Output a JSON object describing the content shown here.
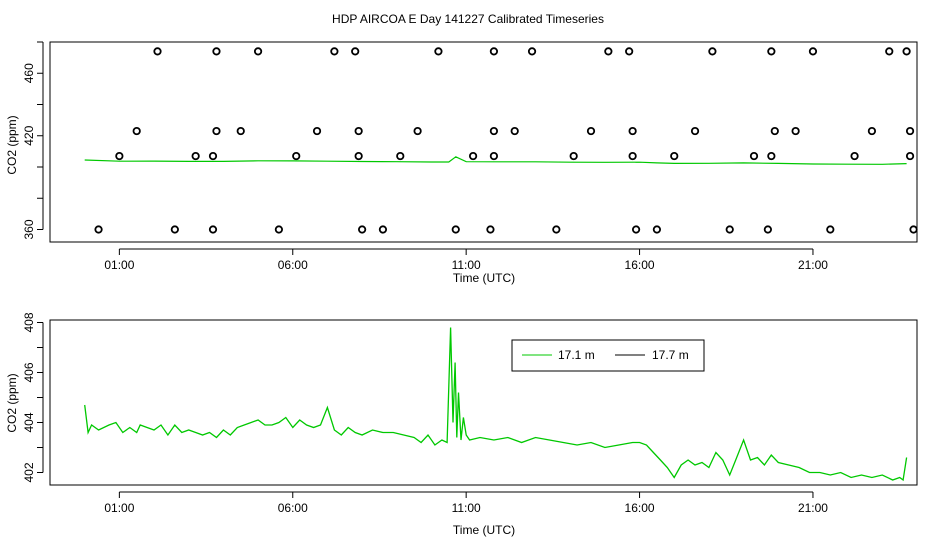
{
  "title": "HDP AIRCOA E  Day 141227  Calibrated Timeseries",
  "colors": {
    "series_17_1": "#00c800",
    "series_17_7": "#000000",
    "axis": "#000000"
  },
  "chart_data": [
    {
      "type": "scatter",
      "xlabel": "Time (UTC)",
      "ylabel": "CO2 (ppm)",
      "xlim": [
        -1.0,
        24.0
      ],
      "ylim": [
        352,
        480
      ],
      "x_ticks": [
        1,
        6,
        11,
        16,
        21
      ],
      "x_tick_labels": [
        "01:00",
        "06:00",
        "11:00",
        "16:00",
        "21:00"
      ],
      "y_ticks": [
        360,
        380,
        400,
        420,
        440,
        460,
        480
      ],
      "y_tick_labels": [
        "360",
        "",
        "",
        "420",
        "",
        "460",
        ""
      ],
      "grid": false,
      "calibration_points": [
        {
          "x": 2.1,
          "y": 474
        },
        {
          "x": 3.8,
          "y": 474
        },
        {
          "x": 5.0,
          "y": 474
        },
        {
          "x": 7.2,
          "y": 474
        },
        {
          "x": 7.8,
          "y": 474
        },
        {
          "x": 10.2,
          "y": 474
        },
        {
          "x": 11.8,
          "y": 474
        },
        {
          "x": 12.9,
          "y": 474
        },
        {
          "x": 15.1,
          "y": 474
        },
        {
          "x": 15.7,
          "y": 474
        },
        {
          "x": 18.1,
          "y": 474
        },
        {
          "x": 19.8,
          "y": 474
        },
        {
          "x": 21.0,
          "y": 474
        },
        {
          "x": 23.2,
          "y": 474
        },
        {
          "x": 23.7,
          "y": 474
        },
        {
          "x": 1.5,
          "y": 423
        },
        {
          "x": 3.8,
          "y": 423
        },
        {
          "x": 4.5,
          "y": 423
        },
        {
          "x": 6.7,
          "y": 423
        },
        {
          "x": 7.9,
          "y": 423
        },
        {
          "x": 9.6,
          "y": 423
        },
        {
          "x": 11.8,
          "y": 423
        },
        {
          "x": 12.4,
          "y": 423
        },
        {
          "x": 14.6,
          "y": 423
        },
        {
          "x": 15.8,
          "y": 423
        },
        {
          "x": 17.6,
          "y": 423
        },
        {
          "x": 19.9,
          "y": 423
        },
        {
          "x": 20.5,
          "y": 423
        },
        {
          "x": 22.7,
          "y": 423
        },
        {
          "x": 23.8,
          "y": 423
        },
        {
          "x": 1.0,
          "y": 407
        },
        {
          "x": 3.2,
          "y": 407
        },
        {
          "x": 3.7,
          "y": 407
        },
        {
          "x": 6.1,
          "y": 407
        },
        {
          "x": 7.9,
          "y": 407
        },
        {
          "x": 9.1,
          "y": 407
        },
        {
          "x": 11.2,
          "y": 407
        },
        {
          "x": 11.8,
          "y": 407
        },
        {
          "x": 14.1,
          "y": 407
        },
        {
          "x": 15.8,
          "y": 407
        },
        {
          "x": 17.0,
          "y": 407
        },
        {
          "x": 19.3,
          "y": 407
        },
        {
          "x": 19.8,
          "y": 407
        },
        {
          "x": 22.2,
          "y": 407
        },
        {
          "x": 23.8,
          "y": 407
        },
        {
          "x": 0.4,
          "y": 360
        },
        {
          "x": 2.6,
          "y": 360
        },
        {
          "x": 3.7,
          "y": 360
        },
        {
          "x": 5.6,
          "y": 360
        },
        {
          "x": 8.0,
          "y": 360
        },
        {
          "x": 8.6,
          "y": 360
        },
        {
          "x": 10.7,
          "y": 360
        },
        {
          "x": 11.7,
          "y": 360
        },
        {
          "x": 13.6,
          "y": 360
        },
        {
          "x": 15.9,
          "y": 360
        },
        {
          "x": 16.5,
          "y": 360
        },
        {
          "x": 18.6,
          "y": 360
        },
        {
          "x": 19.7,
          "y": 360
        },
        {
          "x": 21.5,
          "y": 360
        },
        {
          "x": 23.9,
          "y": 360
        }
      ],
      "line_series": [
        {
          "x": [
            0.0,
            1.0,
            2.0,
            3.0,
            4.0,
            5.0,
            6.0,
            7.0,
            8.0,
            9.0,
            10.0,
            10.5,
            10.7,
            11.0,
            12.0,
            13.0,
            14.0,
            15.0,
            16.0,
            16.5,
            17.0,
            18.0,
            19.0,
            20.0,
            21.0,
            22.0,
            23.0,
            23.7
          ],
          "y": [
            404.5,
            403.7,
            403.8,
            403.6,
            403.6,
            404.0,
            403.9,
            403.7,
            403.5,
            403.4,
            403.2,
            403.2,
            406.5,
            403.4,
            403.3,
            403.3,
            403.1,
            403.0,
            403.1,
            402.6,
            402.3,
            402.4,
            402.6,
            402.3,
            401.9,
            401.8,
            401.7,
            402.2
          ]
        }
      ]
    },
    {
      "type": "line",
      "xlabel": "Time (UTC)",
      "ylabel": "CO2 (ppm)",
      "xlim": [
        -1.0,
        24.0
      ],
      "ylim": [
        401.5,
        408.1
      ],
      "x_ticks": [
        1,
        6,
        11,
        16,
        21
      ],
      "x_tick_labels": [
        "01:00",
        "06:00",
        "11:00",
        "16:00",
        "21:00"
      ],
      "y_ticks": [
        402,
        403,
        404,
        405,
        406,
        407,
        408
      ],
      "y_tick_labels": [
        "402",
        "",
        "404",
        "",
        "406",
        "",
        "408"
      ],
      "grid": false,
      "legend_position": "top-right",
      "legend": [
        "17.1 m",
        "17.7 m"
      ],
      "series": [
        {
          "name": "17.1 m",
          "x": [
            0.0,
            0.1,
            0.2,
            0.4,
            0.7,
            0.9,
            1.1,
            1.3,
            1.5,
            1.6,
            1.8,
            2.0,
            2.2,
            2.4,
            2.6,
            2.8,
            3.0,
            3.2,
            3.4,
            3.6,
            3.8,
            4.0,
            4.2,
            4.4,
            4.6,
            4.8,
            5.0,
            5.2,
            5.4,
            5.6,
            5.8,
            6.0,
            6.2,
            6.4,
            6.6,
            6.8,
            7.0,
            7.2,
            7.4,
            7.6,
            7.8,
            8.0,
            8.3,
            8.6,
            8.9,
            9.2,
            9.5,
            9.7,
            9.9,
            10.1,
            10.3,
            10.45,
            10.55,
            10.62,
            10.68,
            10.73,
            10.78,
            10.85,
            10.92,
            11.0,
            11.1,
            11.4,
            11.8,
            12.2,
            12.6,
            13.0,
            13.4,
            13.8,
            14.2,
            14.6,
            15.0,
            15.4,
            15.8,
            16.0,
            16.2,
            16.4,
            16.6,
            16.8,
            17.0,
            17.2,
            17.4,
            17.6,
            17.8,
            18.0,
            18.2,
            18.4,
            18.6,
            18.8,
            19.0,
            19.2,
            19.4,
            19.6,
            19.8,
            20.0,
            20.3,
            20.6,
            20.9,
            21.2,
            21.5,
            21.8,
            22.1,
            22.4,
            22.7,
            23.0,
            23.3,
            23.5,
            23.6,
            23.7
          ],
          "y": [
            404.7,
            403.6,
            403.9,
            403.7,
            403.9,
            404.0,
            403.6,
            403.8,
            403.6,
            403.9,
            403.8,
            403.7,
            403.9,
            403.5,
            403.9,
            403.6,
            403.7,
            403.6,
            403.5,
            403.6,
            403.4,
            403.7,
            403.5,
            403.8,
            403.9,
            404.0,
            404.1,
            403.9,
            403.9,
            404.0,
            404.2,
            403.8,
            404.1,
            403.9,
            403.8,
            403.9,
            404.6,
            403.7,
            403.5,
            403.8,
            403.6,
            403.5,
            403.7,
            403.6,
            403.6,
            403.5,
            403.4,
            403.2,
            403.5,
            403.1,
            403.3,
            403.2,
            407.8,
            404.0,
            406.4,
            403.4,
            405.2,
            403.3,
            404.2,
            403.5,
            403.3,
            403.4,
            403.3,
            403.4,
            403.2,
            403.4,
            403.3,
            403.2,
            403.1,
            403.2,
            403.0,
            403.1,
            403.2,
            403.2,
            403.1,
            402.8,
            402.5,
            402.2,
            401.8,
            402.3,
            402.5,
            402.3,
            402.4,
            402.2,
            402.8,
            402.5,
            401.9,
            402.6,
            403.3,
            402.5,
            402.6,
            402.3,
            402.7,
            402.4,
            402.3,
            402.2,
            402.0,
            402.0,
            401.9,
            402.0,
            401.8,
            401.9,
            401.8,
            401.9,
            401.7,
            401.8,
            401.7,
            402.6
          ]
        },
        {
          "name": "17.7 m",
          "x": [],
          "y": []
        }
      ]
    }
  ]
}
